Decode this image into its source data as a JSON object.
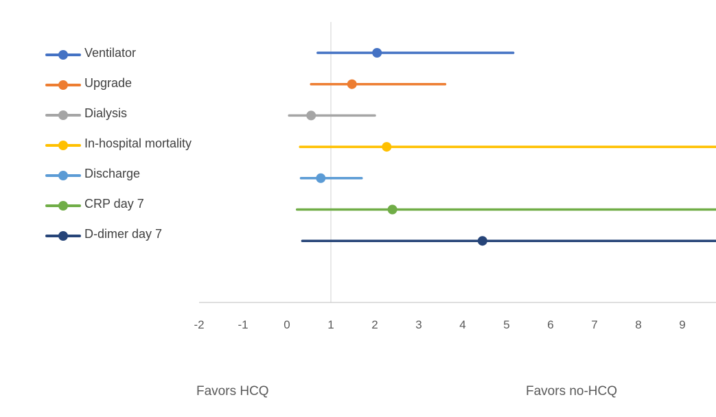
{
  "chart_data": {
    "type": "scatter",
    "title": "",
    "xlabel": "",
    "ylabel": "",
    "xlim": [
      -2,
      9.8
    ],
    "x_ticks": [
      "-2",
      "-1",
      "0",
      "1",
      "2",
      "3",
      "4",
      "5",
      "6",
      "7",
      "8",
      "9"
    ],
    "reference_line_x": 1,
    "grid": false,
    "legend_position": "left",
    "series": [
      {
        "name": "Ventilator",
        "color": "#4472C4",
        "point": 2.05,
        "lower": 0.7,
        "upper": 5.15
      },
      {
        "name": "Upgrade",
        "color": "#ED7D31",
        "point": 1.48,
        "lower": 0.55,
        "upper": 3.6
      },
      {
        "name": "Dialysis",
        "color": "#A5A5A5",
        "point": 0.55,
        "lower": 0.05,
        "upper": 2.0
      },
      {
        "name": "In-hospital mortality",
        "color": "#FFC000",
        "point": 2.27,
        "lower": 0.3,
        "upper": 9.8
      },
      {
        "name": "Discharge",
        "color": "#5B9BD5",
        "point": 0.77,
        "lower": 0.32,
        "upper": 1.7
      },
      {
        "name": "CRP day 7",
        "color": "#70AD47",
        "point": 2.4,
        "lower": 0.23,
        "upper": 9.8
      },
      {
        "name": "D-dimer day 7",
        "color": "#264478",
        "point": 4.45,
        "lower": 0.35,
        "upper": 9.8
      }
    ],
    "annotations": {
      "left": "Favors HCQ",
      "right": "Favors no-HCQ"
    }
  }
}
